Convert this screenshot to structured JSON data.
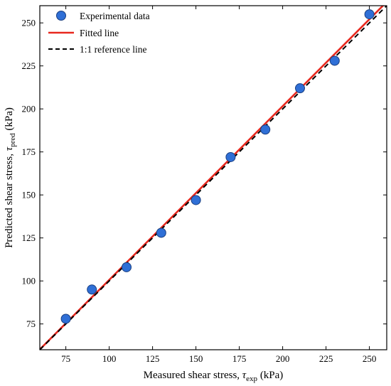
{
  "chart_data": {
    "type": "scatter",
    "xlabel": {
      "prefix": "Measured shear stress, ",
      "symbol": "τ",
      "subscript": "exp",
      "suffix": " (kPa)"
    },
    "ylabel": {
      "prefix": "Predicted shear stress, ",
      "symbol": "τ",
      "subscript": "pred",
      "suffix": " (kPa)"
    },
    "xlim": [
      60,
      260
    ],
    "ylim": [
      60,
      260
    ],
    "xticks": [
      75,
      100,
      125,
      150,
      175,
      200,
      225,
      250
    ],
    "yticks": [
      75,
      100,
      125,
      150,
      175,
      200,
      225,
      250
    ],
    "xticklabels": [
      "75",
      "100",
      "125",
      "150",
      "175",
      "200",
      "225",
      "250"
    ],
    "yticklabels": [
      "75",
      "100",
      "125",
      "150",
      "175",
      "200",
      "225",
      "250"
    ],
    "grid": false,
    "legend_position": "top-left",
    "legend": [
      "Experimental data",
      "Fitted line",
      "1:1 reference line"
    ],
    "series": [
      {
        "kind": "scatter",
        "color": "#2f6fd6",
        "edgecolor": "#1a3f80",
        "points": [
          {
            "x": 75,
            "y": 78
          },
          {
            "x": 90,
            "y": 95
          },
          {
            "x": 110,
            "y": 108
          },
          {
            "x": 130,
            "y": 128
          },
          {
            "x": 150,
            "y": 147
          },
          {
            "x": 170,
            "y": 172
          },
          {
            "x": 190,
            "y": 188
          },
          {
            "x": 210,
            "y": 212
          },
          {
            "x": 230,
            "y": 228
          },
          {
            "x": 250,
            "y": 255
          }
        ]
      },
      {
        "kind": "line",
        "color": "#e8281e",
        "style": "solid",
        "slope": 1.01,
        "intercept": -0.4
      },
      {
        "kind": "line",
        "color": "#000000",
        "style": "dashed",
        "slope": 1,
        "intercept": 0
      }
    ]
  }
}
